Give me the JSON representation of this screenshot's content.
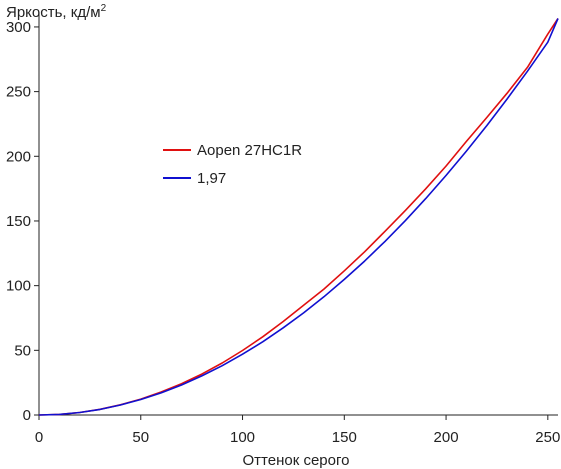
{
  "chart_data": {
    "type": "line",
    "ylabel": "Яркость, кд/м",
    "ylabel_superscript": "2",
    "xlabel": "Оттенок серого",
    "xlim": [
      0,
      255
    ],
    "ylim": [
      0,
      310
    ],
    "x_ticks": [
      "0",
      "50",
      "100",
      "150",
      "200",
      "250"
    ],
    "y_ticks": [
      "0",
      "50",
      "100",
      "150",
      "200",
      "250",
      "300"
    ],
    "x_tick_values": [
      0,
      50,
      100,
      150,
      200,
      250
    ],
    "y_tick_values": [
      0,
      50,
      100,
      150,
      200,
      250,
      300
    ],
    "grid": false,
    "legend_position": "center-left",
    "series": [
      {
        "name": "Aopen 27HC1R",
        "color": "#e01010",
        "x": [
          0,
          10,
          20,
          30,
          40,
          50,
          60,
          70,
          80,
          90,
          100,
          110,
          120,
          130,
          140,
          150,
          160,
          170,
          180,
          190,
          200,
          210,
          220,
          230,
          240,
          250,
          255
        ],
        "y": [
          0,
          0.5,
          1.9,
          4.4,
          7.9,
          12.3,
          17.8,
          24.2,
          31.6,
          40.2,
          49.9,
          60.5,
          72.3,
          84.9,
          97.3,
          111.5,
          126.2,
          142.0,
          158.2,
          174.9,
          192.5,
          211.5,
          230.0,
          248.8,
          268.8,
          294.5,
          306.5
        ]
      },
      {
        "name": "1,97",
        "color": "#1010d0",
        "x": [
          0,
          10,
          20,
          30,
          40,
          50,
          60,
          70,
          80,
          90,
          100,
          110,
          120,
          130,
          140,
          150,
          160,
          170,
          180,
          190,
          200,
          210,
          220,
          230,
          240,
          250,
          255
        ],
        "y": [
          0,
          0.5,
          1.9,
          4.3,
          7.7,
          12.0,
          17.1,
          23.2,
          30.2,
          38.1,
          47.0,
          56.7,
          67.4,
          78.9,
          91.4,
          104.8,
          119.0,
          134.2,
          150.3,
          167.3,
          185.2,
          204.0,
          223.7,
          244.3,
          265.8,
          288.2,
          306.5
        ]
      }
    ]
  }
}
